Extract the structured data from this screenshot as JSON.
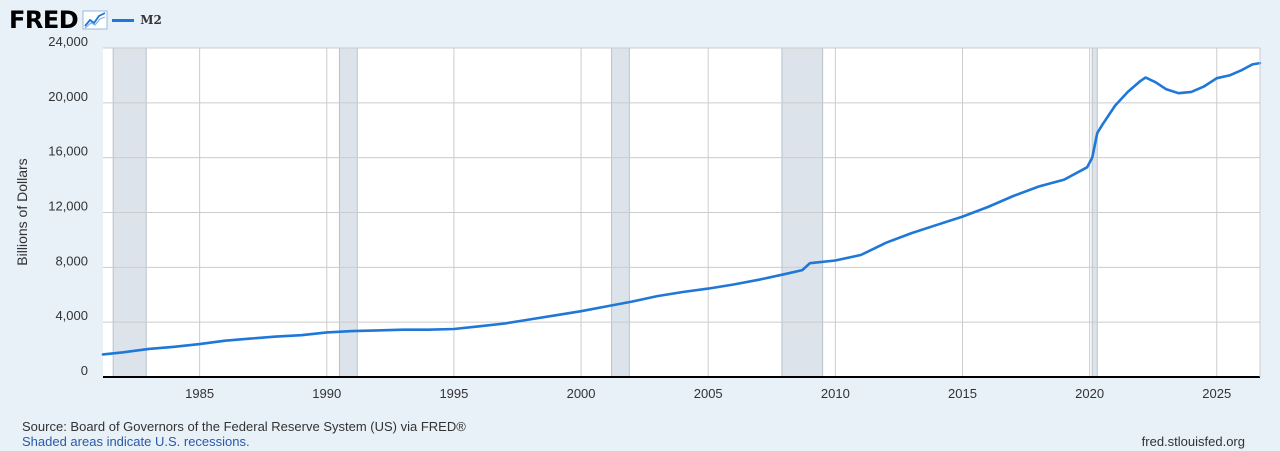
{
  "brand": {
    "logo_text": "FRED",
    "logo_icon": "line-chart-icon"
  },
  "colors": {
    "series": "#1f77d8",
    "recession": "#dde3ea",
    "background": "#e8f0f8",
    "plot": "#ffffff",
    "grid": "#cccccc"
  },
  "footer": {
    "source": "Source: Board of Governors of the Federal Reserve System (US) via FRED®",
    "note": "Shaded areas indicate U.S. recessions.",
    "url": "fred.stlouisfed.org"
  },
  "chart_data": {
    "type": "line",
    "title": "",
    "xlabel": "",
    "ylabel": "Billions of Dollars",
    "xlim": [
      1981.2,
      2026.7
    ],
    "ylim": [
      0,
      24000
    ],
    "yticks": [
      0,
      4000,
      8000,
      12000,
      16000,
      20000,
      24000
    ],
    "ytick_labels": [
      "0",
      "4,000",
      "8,000",
      "12,000",
      "16,000",
      "20,000",
      "24,000"
    ],
    "xticks": [
      1985,
      1990,
      1995,
      2000,
      2005,
      2010,
      2015,
      2020,
      2025
    ],
    "xtick_labels": [
      "1985",
      "1990",
      "1995",
      "2000",
      "2005",
      "2010",
      "2015",
      "2020",
      "2025"
    ],
    "grid": true,
    "legend": "top-left",
    "recessions": [
      [
        1981.6,
        1982.9
      ],
      [
        1990.5,
        1991.2
      ],
      [
        2001.2,
        2001.9
      ],
      [
        2007.9,
        2009.5
      ],
      [
        2020.1,
        2020.3
      ]
    ],
    "series": [
      {
        "name": "M2",
        "x": [
          1981.2,
          1982,
          1983,
          1984,
          1985,
          1986,
          1987,
          1988,
          1989,
          1990,
          1991,
          1992,
          1993,
          1994,
          1995,
          1996,
          1997,
          1998,
          1999,
          2000,
          2001,
          2002,
          2003,
          2004,
          2005,
          2006,
          2007,
          2008,
          2008.7,
          2009,
          2010,
          2011,
          2012,
          2013,
          2014,
          2015,
          2016,
          2017,
          2018,
          2019,
          2019.9,
          2020.1,
          2020.3,
          2020.5,
          2021,
          2021.5,
          2022,
          2022.2,
          2022.6,
          2023,
          2023.5,
          2024,
          2024.5,
          2025,
          2025.5,
          2026,
          2026.4,
          2026.7
        ],
        "y": [
          1650,
          1800,
          2050,
          2200,
          2400,
          2650,
          2800,
          2950,
          3050,
          3250,
          3350,
          3400,
          3450,
          3450,
          3500,
          3700,
          3900,
          4200,
          4500,
          4800,
          5150,
          5500,
          5900,
          6200,
          6450,
          6750,
          7100,
          7500,
          7800,
          8300,
          8500,
          8900,
          9800,
          10500,
          11100,
          11700,
          12400,
          13200,
          13900,
          14400,
          15300,
          16000,
          17800,
          18400,
          19800,
          20800,
          21600,
          21850,
          21500,
          21000,
          20700,
          20800,
          21200,
          21800,
          22000,
          22400,
          22800,
          22900
        ]
      }
    ]
  }
}
